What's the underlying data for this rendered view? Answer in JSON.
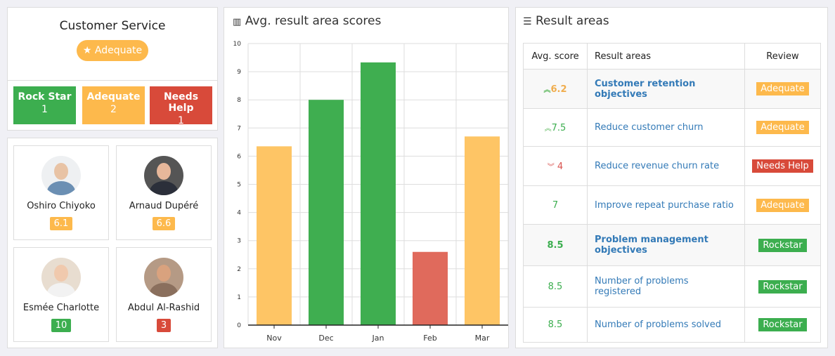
{
  "team": {
    "name": "Customer Service",
    "status": "Adequate",
    "status_icon": "star-icon",
    "counts": [
      {
        "label": "Rock Star",
        "count": "1",
        "color": "#3cae4f"
      },
      {
        "label": "Adequate",
        "count": "2",
        "color": "#fdb94c"
      },
      {
        "label": "Needs Help",
        "count": "1",
        "color": "#d84a3a"
      }
    ]
  },
  "members": [
    {
      "name": "Oshiro Chiyoko",
      "score": "6.1",
      "color": "#fdb94c"
    },
    {
      "name": "Arnaud Dupéré",
      "score": "6.6",
      "color": "#fdb94c"
    },
    {
      "name": "Esmée Charlotte",
      "score": "10",
      "color": "#3cae4f"
    },
    {
      "name": "Abdul Al-Rashid",
      "score": "3",
      "color": "#d84a3a"
    }
  ],
  "chart_title": "Avg. result area scores",
  "chart_data": {
    "type": "bar",
    "categories": [
      "Nov",
      "Dec",
      "Jan",
      "Feb",
      "Mar"
    ],
    "values": [
      6.35,
      8.0,
      9.33,
      2.6,
      6.7
    ],
    "colors": [
      "#fec565",
      "#3fae50",
      "#3fae50",
      "#e06a5c",
      "#fec565"
    ],
    "ylim": [
      0,
      10
    ],
    "yticks": [
      "0",
      "1",
      "2",
      "3",
      "4",
      "5",
      "6",
      "7",
      "8",
      "9",
      "10"
    ],
    "grid": true
  },
  "results": {
    "title": "Result areas",
    "headers": [
      "Avg. score",
      "Result areas",
      "Review"
    ],
    "rows": [
      {
        "trend": "up",
        "score": "6.2",
        "score_color": "#f0ad4e",
        "area": "Customer retention objectives",
        "group": true,
        "review": "Adequate",
        "review_color": "#fdb94c"
      },
      {
        "trend": "up",
        "score": "7.5",
        "score_color": "#3cae4f",
        "area": "Reduce customer churn",
        "group": false,
        "review": "Adequate",
        "review_color": "#fdb94c"
      },
      {
        "trend": "down",
        "score": "4",
        "score_color": "#d9534f",
        "area": "Reduce revenue churn rate",
        "group": false,
        "review": "Needs Help",
        "review_color": "#d84a3a"
      },
      {
        "trend": "",
        "score": "7",
        "score_color": "#3cae4f",
        "area": "Improve  repeat purchase ratio",
        "group": false,
        "review": "Adequate",
        "review_color": "#fdb94c"
      },
      {
        "trend": "",
        "score": "8.5",
        "score_color": "#3cae4f",
        "area": "Problem management objectives",
        "group": true,
        "review": "Rockstar",
        "review_color": "#3cae4f"
      },
      {
        "trend": "",
        "score": "8.5",
        "score_color": "#3cae4f",
        "area": "Number of problems registered",
        "group": false,
        "review": "Rockstar",
        "review_color": "#3cae4f"
      },
      {
        "trend": "",
        "score": "8.5",
        "score_color": "#3cae4f",
        "area": "Number of problems solved",
        "group": false,
        "review": "Rockstar",
        "review_color": "#3cae4f"
      }
    ]
  }
}
